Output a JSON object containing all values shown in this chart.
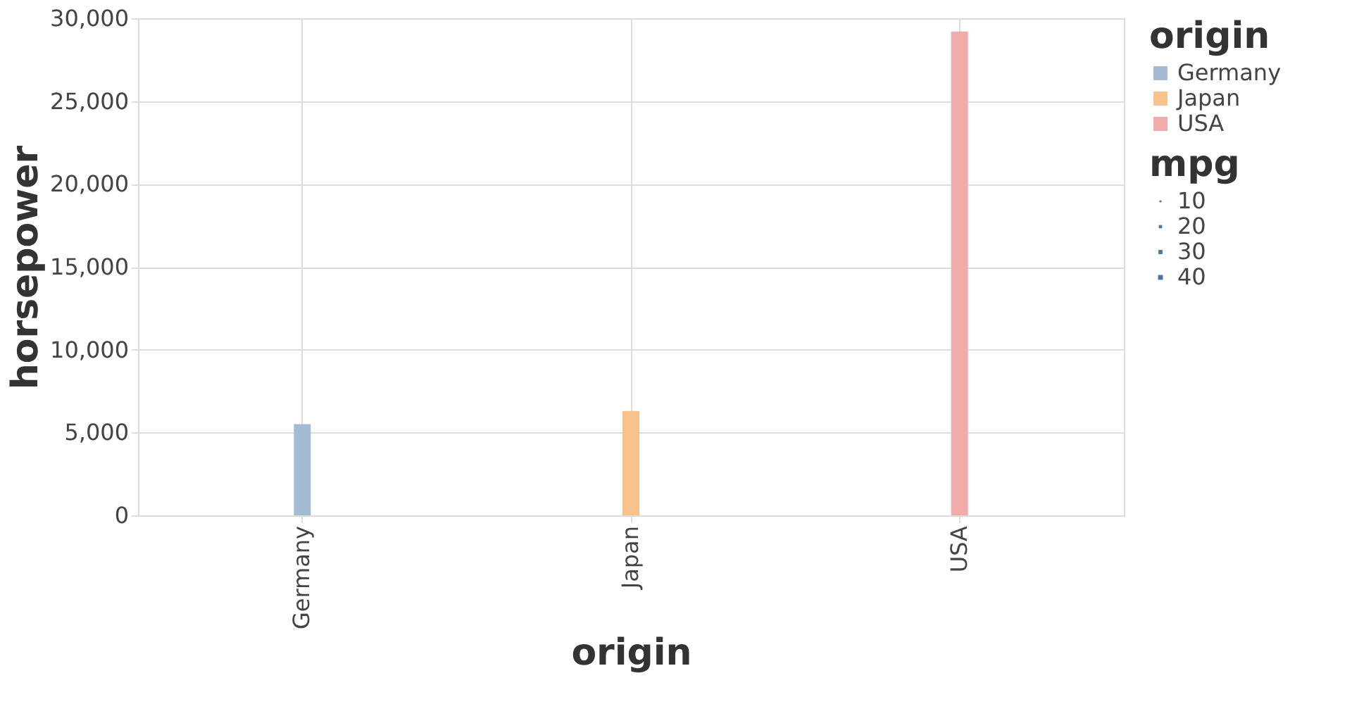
{
  "chart_data": {
    "type": "bar",
    "categories": [
      "Germany",
      "Japan",
      "USA"
    ],
    "series": [
      {
        "name": "Germany",
        "color": "#a5bbd3",
        "values": [
          5500,
          null,
          null
        ]
      },
      {
        "name": "Japan",
        "color": "#fac28b",
        "values": [
          null,
          6300,
          null
        ]
      },
      {
        "name": "USA",
        "color": "#f1abaa",
        "values": [
          null,
          null,
          29200
        ]
      }
    ],
    "xlabel": "origin",
    "ylabel": "horsepower",
    "legend_title": "origin",
    "legend": "top right",
    "ylim": [
      0,
      30000
    ],
    "yticks": [
      0,
      {
        "value": 5000,
        "label": "5,000"
      },
      {
        "value": 10000,
        "label": "10,000"
      },
      {
        "value": 15000,
        "label": "15,000"
      },
      {
        "value": 20000,
        "label": "20,000"
      },
      {
        "value": 25000,
        "label": "25,000"
      },
      {
        "value": 30000,
        "label": "30,000"
      }
    ],
    "grid": true,
    "annotations": [
      "mpg",
      "10",
      "20",
      "30",
      "40"
    ]
  }
}
